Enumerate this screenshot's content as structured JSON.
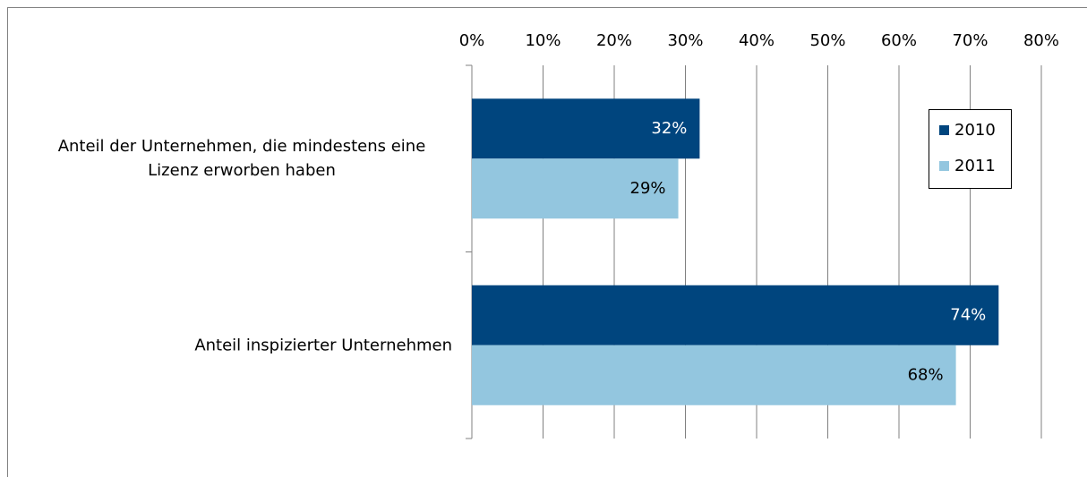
{
  "chart_data": {
    "type": "bar",
    "orientation": "horizontal",
    "categories": [
      "Anteil der Unternehmen, die mindestens eine Lizenz erworben haben",
      "Anteil inspizierter Unternehmen"
    ],
    "series": [
      {
        "name": "2010",
        "color": "#00457e",
        "values": [
          32,
          74
        ],
        "value_labels": [
          "32%",
          "74%"
        ]
      },
      {
        "name": "2011",
        "color": "#93c6df",
        "values": [
          29,
          68
        ],
        "value_labels": [
          "29%",
          "68%"
        ]
      }
    ],
    "xlim": [
      0,
      80
    ],
    "xticks": [
      {
        "value": 0,
        "label": "0%"
      },
      {
        "value": 10,
        "label": "10%"
      },
      {
        "value": 20,
        "label": "20%"
      },
      {
        "value": 30,
        "label": "30%"
      },
      {
        "value": 40,
        "label": "40%"
      },
      {
        "value": 50,
        "label": "50%"
      },
      {
        "value": 60,
        "label": "60%"
      },
      {
        "value": 70,
        "label": "70%"
      },
      {
        "value": 80,
        "label": "80%"
      }
    ],
    "grid": true,
    "legend": "upper right"
  }
}
